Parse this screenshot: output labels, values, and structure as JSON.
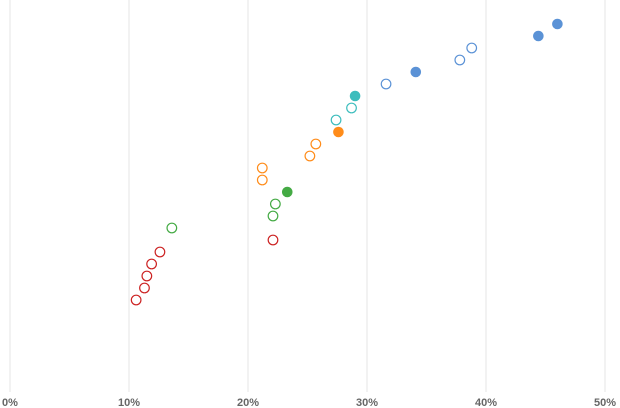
{
  "chart_data": {
    "type": "scatter",
    "title": "",
    "xlabel": "",
    "ylabel": "",
    "xlim": [
      0,
      50
    ],
    "x_ticks": [
      0,
      10,
      20,
      30,
      40,
      50
    ],
    "x_tick_format": "percent",
    "grid": true,
    "legend": "none",
    "series": [
      {
        "color": "#cc2222",
        "points": [
          {
            "x": 10.6,
            "y": 1,
            "filled": false
          },
          {
            "x": 11.3,
            "y": 2,
            "filled": false
          },
          {
            "x": 11.5,
            "y": 3,
            "filled": false
          },
          {
            "x": 11.9,
            "y": 4,
            "filled": false
          },
          {
            "x": 12.6,
            "y": 5,
            "filled": false
          },
          {
            "x": 22.1,
            "y": 6,
            "filled": false
          }
        ]
      },
      {
        "color": "#44aa44",
        "points": [
          {
            "x": 13.6,
            "y": 7,
            "filled": false
          },
          {
            "x": 22.1,
            "y": 8,
            "filled": false
          },
          {
            "x": 22.3,
            "y": 9,
            "filled": false
          },
          {
            "x": 23.3,
            "y": 10,
            "filled": true
          }
        ]
      },
      {
        "color": "#ff8c1a",
        "points": [
          {
            "x": 21.2,
            "y": 11,
            "filled": false
          },
          {
            "x": 21.2,
            "y": 12,
            "filled": false
          },
          {
            "x": 25.2,
            "y": 13,
            "filled": false
          },
          {
            "x": 25.7,
            "y": 14,
            "filled": false
          },
          {
            "x": 27.6,
            "y": 15,
            "filled": true
          }
        ]
      },
      {
        "color": "#3dbdbd",
        "points": [
          {
            "x": 27.4,
            "y": 16,
            "filled": false
          },
          {
            "x": 28.7,
            "y": 17,
            "filled": false
          },
          {
            "x": 29.0,
            "y": 18,
            "filled": true
          }
        ]
      },
      {
        "color": "#5b92d6",
        "points": [
          {
            "x": 31.6,
            "y": 19,
            "filled": false
          },
          {
            "x": 34.1,
            "y": 20,
            "filled": true
          },
          {
            "x": 37.8,
            "y": 21,
            "filled": false
          },
          {
            "x": 38.8,
            "y": 22,
            "filled": false
          },
          {
            "x": 44.4,
            "y": 23,
            "filled": true
          },
          {
            "x": 46.0,
            "y": 24,
            "filled": true
          }
        ]
      }
    ]
  }
}
